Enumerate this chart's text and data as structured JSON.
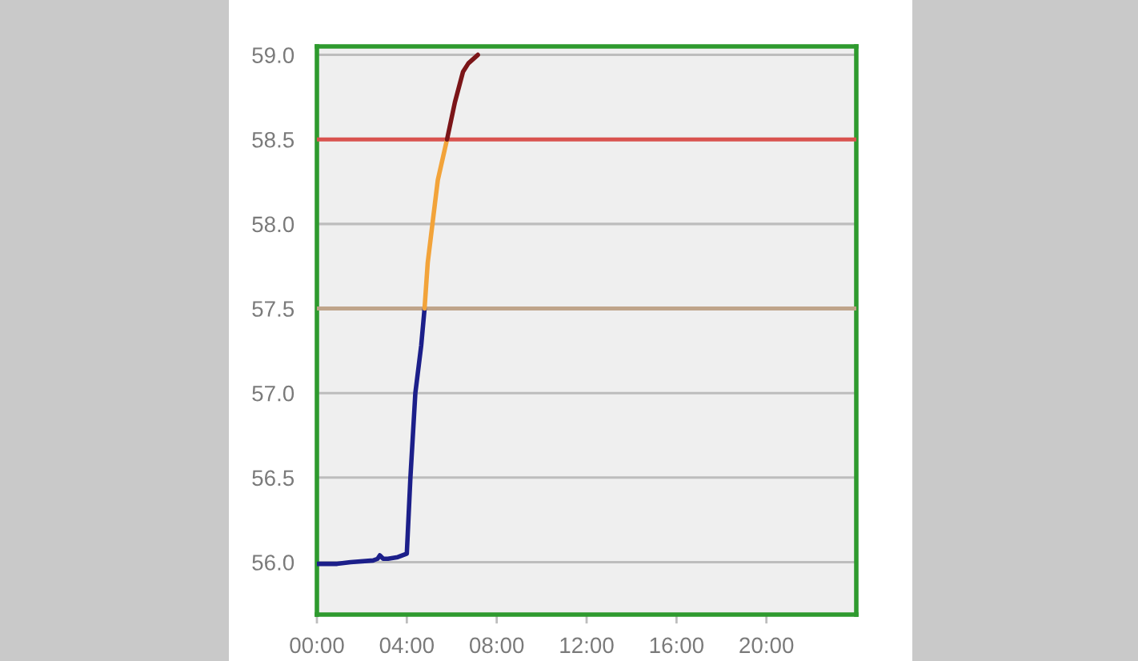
{
  "chart_data": {
    "type": "line",
    "series": [
      {
        "color": "#1c1f8a",
        "x": [
          0,
          0.9,
          1.5,
          2.5,
          2.7,
          2.8,
          2.95,
          3.16,
          3.6,
          4.0,
          4.16,
          4.38,
          4.64,
          4.79
        ],
        "values": [
          55.99,
          55.99,
          56.0,
          56.01,
          56.02,
          56.04,
          56.02,
          56.02,
          56.03,
          56.05,
          56.5,
          57.0,
          57.28,
          57.5
        ]
      },
      {
        "color": "#f2a33a",
        "x": [
          4.79,
          4.93,
          5.14,
          5.38,
          5.79
        ],
        "values": [
          57.5,
          57.77,
          58.0,
          58.26,
          58.5
        ]
      },
      {
        "color": "#7b1518",
        "x": [
          5.79,
          6.14,
          6.5,
          6.74,
          7.16
        ],
        "values": [
          58.5,
          58.72,
          58.9,
          58.95,
          59.0
        ]
      }
    ],
    "xlim": [
      0,
      24
    ],
    "xticks": [
      {
        "value": 0,
        "label": "00:00"
      },
      {
        "value": 4,
        "label": "04:00"
      },
      {
        "value": 8,
        "label": "08:00"
      },
      {
        "value": 12,
        "label": "12:00"
      },
      {
        "value": 16,
        "label": "16:00"
      },
      {
        "value": 20,
        "label": "20:00"
      }
    ],
    "ylim": [
      55.69,
      59.05
    ],
    "yticks": [
      {
        "value": 56,
        "label": "56.0"
      },
      {
        "value": 56.5,
        "label": "56.5"
      },
      {
        "value": 57,
        "label": "57.0"
      },
      {
        "value": 57.5,
        "label": "57.5"
      },
      {
        "value": 58,
        "label": "58.0"
      },
      {
        "value": 58.5,
        "label": "58.5"
      },
      {
        "value": 59,
        "label": "59.0"
      }
    ],
    "ref_lines": [
      {
        "axis": "y",
        "value": 58.5,
        "color": "#d9534f"
      },
      {
        "axis": "y",
        "value": 57.5,
        "color": "#bfa48a"
      }
    ],
    "grid": "y"
  }
}
